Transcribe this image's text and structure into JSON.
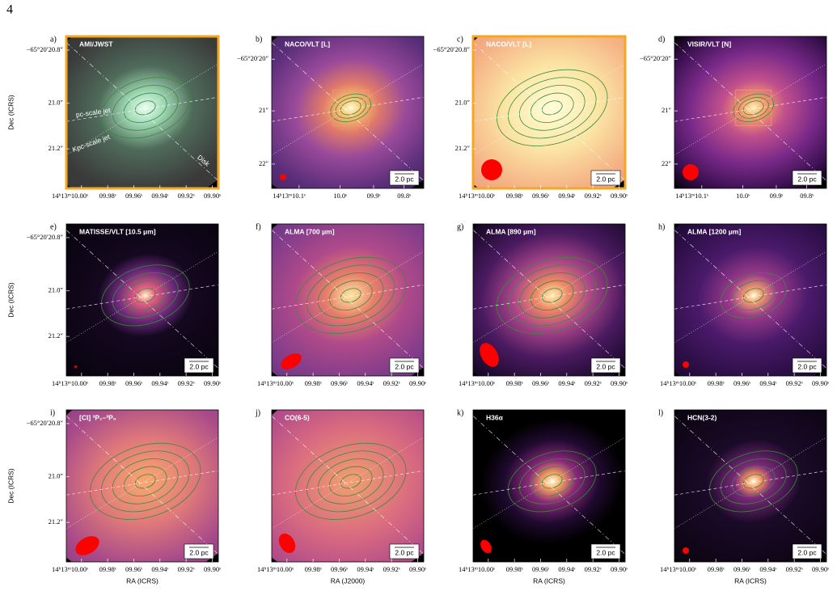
{
  "page_number": "4",
  "panels": [
    {
      "label": "a)",
      "title": "AMI/JWST",
      "ylabel": "Dec (ICRS)",
      "dec_ticks": [
        "−65°20′20.8″",
        "21.0″",
        "21.2″"
      ],
      "ra_ticks": [
        "14ʰ13ᵐ10.00ˢ",
        "09.98ˢ",
        "09.96ˢ",
        "09.94ˢ",
        "09.92ˢ",
        "09.90ˢ"
      ],
      "annotations": [
        "pc-scale jet",
        "Kpc-scale jet",
        "Disk"
      ]
    },
    {
      "label": "b)",
      "title": "NACO/VLT [L]",
      "dec_ticks": [
        "−65°20′20″",
        "21″",
        "22″"
      ],
      "ra_ticks": [
        "14ʰ13ᵐ10.1ˢ",
        "10.0ˢ",
        "09.9ˢ",
        "09.8ˢ"
      ],
      "scale_bar": "2.0 pc"
    },
    {
      "label": "c)",
      "title": "NACO/VLT [L]",
      "dec_ticks": [
        "−65°20′20.8″",
        "21.0″",
        "21.2″"
      ],
      "ra_ticks": [
        "14ʰ13ᵐ10.00ˢ",
        "09.98ˢ",
        "09.96ˢ",
        "09.94ˢ",
        "09.92ˢ",
        "09.90ˢ"
      ],
      "scale_bar": "2.0 pc"
    },
    {
      "label": "d)",
      "title": "VISIR/VLT [N]",
      "dec_ticks": [
        "−65°20′20″",
        "21″",
        "22″"
      ],
      "ra_ticks": [
        "14ʰ13ᵐ10.1ˢ",
        "10.0ˢ",
        "09.9ˢ",
        "09.8ˢ"
      ],
      "scale_bar": "2.0 pc"
    },
    {
      "label": "e)",
      "title": "MATISSE/VLT [10.5 μm]",
      "ylabel": "Dec (ICRS)",
      "dec_ticks": [
        "−65°20′20.8″",
        "21.0″",
        "21.2″"
      ],
      "ra_ticks": [
        "14ʰ13ᵐ10.00ˢ",
        "09.98ˢ",
        "09.96ˢ",
        "09.94ˢ",
        "09.92ˢ",
        "09.90ˢ"
      ],
      "scale_bar": "2.0 pc"
    },
    {
      "label": "f)",
      "title": "ALMA [700 μm]",
      "dec_ticks": [],
      "ra_ticks": [
        "14ʰ13ᵐ10.00ˢ",
        "09.98ˢ",
        "09.96ˢ",
        "09.94ˢ",
        "09.92ˢ",
        "09.90ˢ"
      ],
      "scale_bar": "2.0 pc"
    },
    {
      "label": "g)",
      "title": "ALMA [890 μm]",
      "dec_ticks": [],
      "ra_ticks": [
        "14ʰ13ᵐ10.00ˢ",
        "09.98ˢ",
        "09.96ˢ",
        "09.94ˢ",
        "09.92ˢ",
        "09.90ˢ"
      ],
      "scale_bar": "2.0 pc"
    },
    {
      "label": "h)",
      "title": "ALMA [1200 μm]",
      "dec_ticks": [],
      "ra_ticks": [
        "14ʰ13ᵐ10.00ˢ",
        "09.98ˢ",
        "09.96ˢ",
        "09.94ˢ",
        "09.92ˢ",
        "09.90ˢ"
      ],
      "scale_bar": "2.0 pc"
    },
    {
      "label": "i)",
      "title": "[CI] ³P₁–³P₀",
      "ylabel": "Dec (ICRS)",
      "xlabel": "RA (ICRS)",
      "dec_ticks": [
        "−65°20′20.8″",
        "21.0″",
        "21.2″"
      ],
      "ra_ticks": [
        "14ʰ13ᵐ10.00ˢ",
        "09.98ˢ",
        "09.96ˢ",
        "09.94ˢ",
        "09.92ˢ",
        "09.90ˢ"
      ],
      "scale_bar": "2.0 pc"
    },
    {
      "label": "j)",
      "title": "CO(6-5)",
      "xlabel": "RA (J2000)",
      "dec_ticks": [],
      "ra_ticks": [
        "14ʰ13ᵐ10.00ˢ",
        "09.98ˢ",
        "09.96ˢ",
        "09.94ˢ",
        "09.92ˢ",
        "09.90ˢ"
      ],
      "scale_bar": "2.0 pc"
    },
    {
      "label": "k)",
      "title": "H36α",
      "xlabel": "RA (ICRS)",
      "dec_ticks": [],
      "ra_ticks": [
        "14ʰ13ᵐ10.00ˢ",
        "09.98ˢ",
        "09.96ˢ",
        "09.94ˢ",
        "09.92ˢ",
        "09.90ˢ"
      ],
      "scale_bar": "2.0 pc"
    },
    {
      "label": "l)",
      "title": "HCN(3-2)",
      "xlabel": "RA (ICRS)",
      "dec_ticks": [],
      "ra_ticks": [
        "14ʰ13ᵐ10.00ˢ",
        "09.98ˢ",
        "09.96ˢ",
        "09.94ˢ",
        "09.92ˢ",
        "09.90ˢ"
      ],
      "scale_bar": "2.0 pc"
    }
  ]
}
